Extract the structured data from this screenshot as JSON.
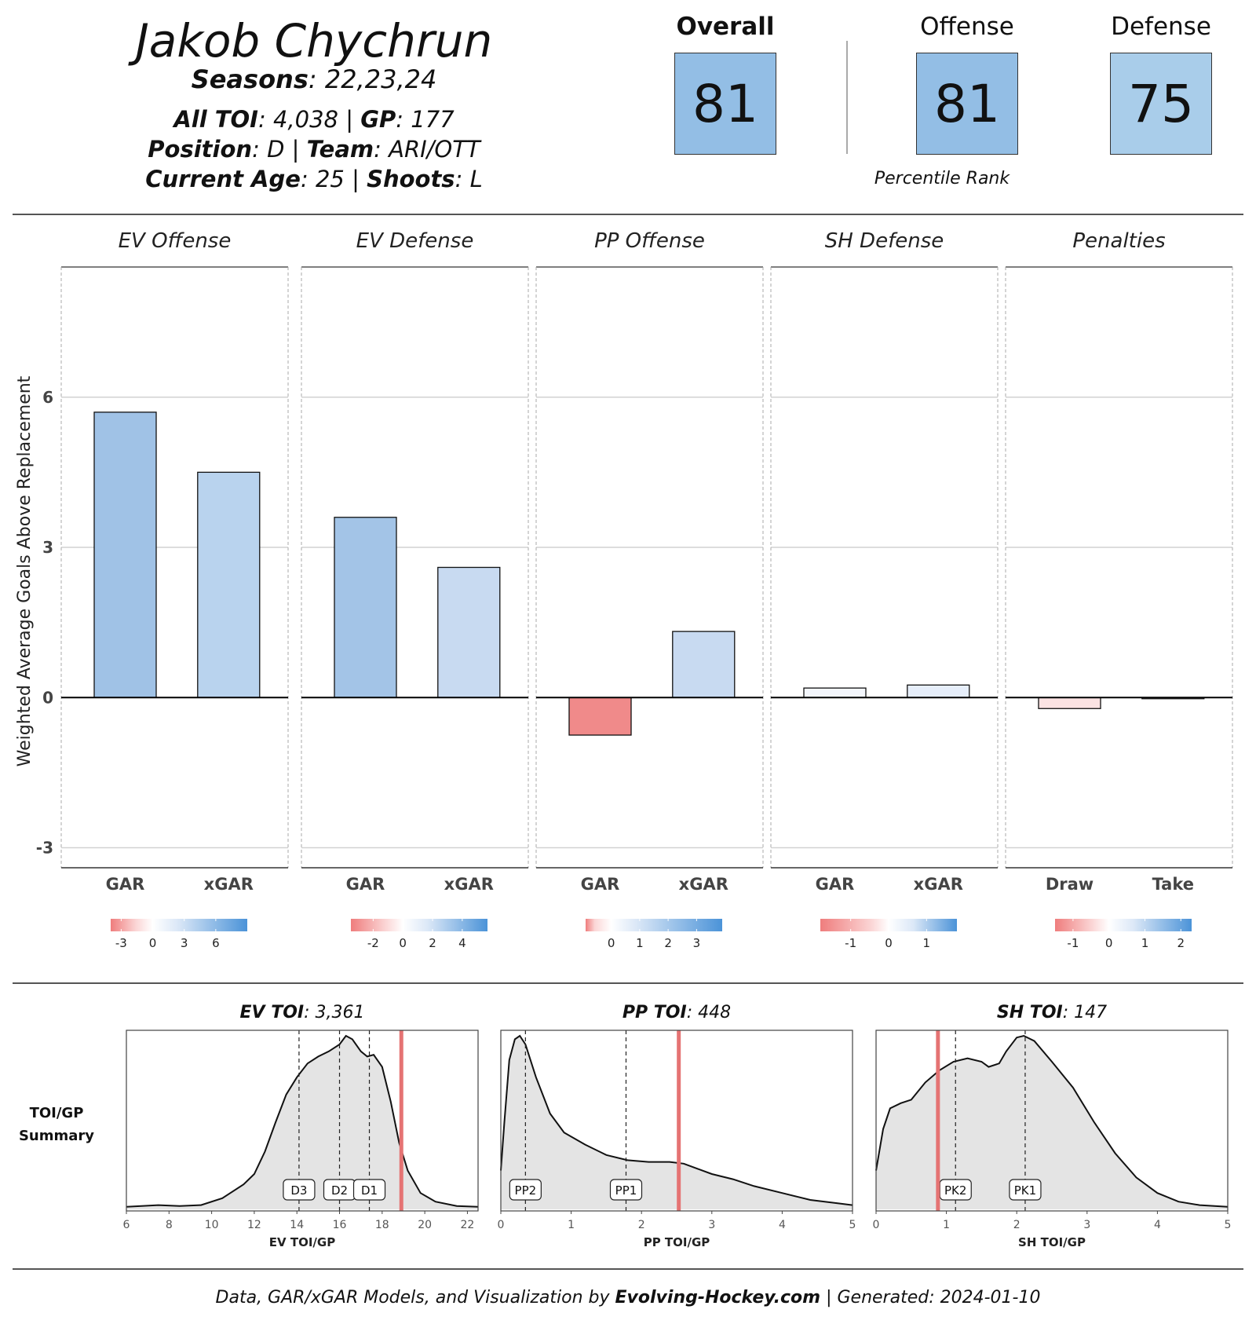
{
  "header": {
    "player_name": "Jakob Chychrun",
    "seasons_label": "Seasons",
    "seasons_value": "22,23,24",
    "toi_label": "All TOI",
    "toi_value": "4,038",
    "gp_label": "GP",
    "gp_value": "177",
    "position_label": "Position",
    "position_value": "D",
    "team_label": "Team",
    "team_value": "ARI/OTT",
    "age_label": "Current Age",
    "age_value": "25",
    "shoots_label": "Shoots",
    "shoots_value": "L",
    "separator": "|"
  },
  "ratings": {
    "overall": {
      "label": "Overall",
      "value": "81",
      "color": "#93bee5"
    },
    "offense": {
      "label": "Offense",
      "value": "81",
      "color": "#93bee5"
    },
    "defense": {
      "label": "Defense",
      "value": "75",
      "color": "#a9cdea"
    },
    "caption": "Percentile Rank"
  },
  "footer": {
    "prefix": "Data, GAR/xGAR Models, and Visualization by",
    "site": "Evolving-Hockey.com",
    "generated": "| Generated: 2024-01-10"
  },
  "toi_summary_label": [
    "TOI/GP",
    "Summary"
  ],
  "chart_data": [
    {
      "type": "bar",
      "ylabel": "Weighted Average Goals Above Replacement",
      "ylim": [
        -3.4,
        8.6
      ],
      "yticks": [
        -3,
        0,
        3,
        6
      ],
      "grid": true,
      "panels": [
        {
          "title": "EV Offense",
          "categories": [
            "GAR",
            "xGAR"
          ],
          "values": [
            5.7,
            4.5
          ],
          "colors": [
            "#a0c2e6",
            "#b9d3ee"
          ],
          "legend_ticks": [
            -3,
            0,
            3,
            6
          ],
          "legend_range": [
            -4,
            9
          ]
        },
        {
          "title": "EV Defense",
          "categories": [
            "GAR",
            "xGAR"
          ],
          "values": [
            3.6,
            2.6
          ],
          "colors": [
            "#a3c4e7",
            "#c8daf1"
          ],
          "legend_ticks": [
            -2,
            0,
            2,
            4
          ],
          "legend_range": [
            -3.5,
            5.7
          ]
        },
        {
          "title": "PP Offense",
          "categories": [
            "GAR",
            "xGAR"
          ],
          "values": [
            -0.75,
            1.32
          ],
          "colors": [
            "#f08a8a",
            "#c8daf1"
          ],
          "legend_ticks": [
            0,
            1,
            2,
            3
          ],
          "legend_range": [
            -0.9,
            3.9
          ]
        },
        {
          "title": "SH Defense",
          "categories": [
            "GAR",
            "xGAR"
          ],
          "values": [
            0.19,
            0.25
          ],
          "colors": [
            "#f3f6fc",
            "#e6eefa"
          ],
          "legend_ticks": [
            -1,
            0,
            1
          ],
          "legend_range": [
            -1.8,
            1.8
          ]
        },
        {
          "title": "Penalties",
          "categories": [
            "Draw",
            "Take"
          ],
          "values": [
            -0.22,
            -0.02
          ],
          "colors": [
            "#fbe3e3",
            "#ffffff"
          ],
          "legend_ticks": [
            -1,
            0,
            1,
            2
          ],
          "legend_range": [
            -1.5,
            2.3
          ]
        }
      ]
    },
    {
      "type": "area",
      "title_label": "EV TOI",
      "title_value": "3,361",
      "xlabel": "EV TOI/GP",
      "xlim": [
        6,
        22.5
      ],
      "xticks": [
        6,
        8,
        10,
        12,
        14,
        16,
        18,
        20,
        22
      ],
      "density": [
        [
          6,
          0.01
        ],
        [
          7.5,
          0.02
        ],
        [
          8.5,
          0.015
        ],
        [
          9.5,
          0.02
        ],
        [
          10.5,
          0.06
        ],
        [
          11.5,
          0.14
        ],
        [
          12,
          0.2
        ],
        [
          12.5,
          0.33
        ],
        [
          13,
          0.5
        ],
        [
          13.5,
          0.66
        ],
        [
          14,
          0.76
        ],
        [
          14.5,
          0.84
        ],
        [
          15,
          0.88
        ],
        [
          15.5,
          0.91
        ],
        [
          16,
          0.95
        ],
        [
          16.3,
          1.0
        ],
        [
          16.6,
          0.98
        ],
        [
          17,
          0.91
        ],
        [
          17.3,
          0.88
        ],
        [
          17.6,
          0.89
        ],
        [
          18,
          0.82
        ],
        [
          18.4,
          0.62
        ],
        [
          18.8,
          0.38
        ],
        [
          19.2,
          0.22
        ],
        [
          19.8,
          0.09
        ],
        [
          20.5,
          0.04
        ],
        [
          21.5,
          0.015
        ],
        [
          22.5,
          0.01
        ]
      ],
      "reference_lines": [
        {
          "label": "D3",
          "x": 14.1
        },
        {
          "label": "D2",
          "x": 16.0
        },
        {
          "label": "D1",
          "x": 17.4
        }
      ],
      "player_value": 18.9
    },
    {
      "type": "area",
      "title_label": "PP TOI",
      "title_value": "448",
      "xlabel": "PP TOI/GP",
      "xlim": [
        0,
        5
      ],
      "xticks": [
        0,
        1,
        2,
        3,
        4,
        5
      ],
      "density": [
        [
          0,
          0.22
        ],
        [
          0.05,
          0.5
        ],
        [
          0.12,
          0.86
        ],
        [
          0.2,
          0.98
        ],
        [
          0.27,
          1.0
        ],
        [
          0.35,
          0.95
        ],
        [
          0.5,
          0.76
        ],
        [
          0.7,
          0.55
        ],
        [
          0.9,
          0.44
        ],
        [
          1.2,
          0.37
        ],
        [
          1.5,
          0.31
        ],
        [
          1.8,
          0.28
        ],
        [
          2.1,
          0.27
        ],
        [
          2.4,
          0.27
        ],
        [
          2.6,
          0.26
        ],
        [
          2.8,
          0.23
        ],
        [
          3.0,
          0.2
        ],
        [
          3.3,
          0.17
        ],
        [
          3.6,
          0.13
        ],
        [
          4.0,
          0.09
        ],
        [
          4.4,
          0.05
        ],
        [
          4.8,
          0.03
        ],
        [
          5.0,
          0.02
        ]
      ],
      "reference_lines": [
        {
          "label": "PP2",
          "x": 0.35
        },
        {
          "label": "PP1",
          "x": 1.78
        }
      ],
      "player_value": 2.53
    },
    {
      "type": "area",
      "title_label": "SH TOI",
      "title_value": "147",
      "xlabel": "SH TOI/GP",
      "xlim": [
        0,
        5
      ],
      "xticks": [
        0,
        1,
        2,
        3,
        4,
        5
      ],
      "density": [
        [
          0,
          0.22
        ],
        [
          0.1,
          0.46
        ],
        [
          0.2,
          0.58
        ],
        [
          0.35,
          0.61
        ],
        [
          0.5,
          0.63
        ],
        [
          0.7,
          0.73
        ],
        [
          0.9,
          0.8
        ],
        [
          1.1,
          0.85
        ],
        [
          1.3,
          0.87
        ],
        [
          1.5,
          0.85
        ],
        [
          1.6,
          0.82
        ],
        [
          1.75,
          0.84
        ],
        [
          1.85,
          0.91
        ],
        [
          2.0,
          0.99
        ],
        [
          2.1,
          1.0
        ],
        [
          2.25,
          0.97
        ],
        [
          2.5,
          0.85
        ],
        [
          2.8,
          0.7
        ],
        [
          3.1,
          0.5
        ],
        [
          3.4,
          0.32
        ],
        [
          3.7,
          0.18
        ],
        [
          4.0,
          0.09
        ],
        [
          4.3,
          0.04
        ],
        [
          4.6,
          0.02
        ],
        [
          5.0,
          0.01
        ]
      ],
      "reference_lines": [
        {
          "label": "PK2",
          "x": 1.13
        },
        {
          "label": "PK1",
          "x": 2.12
        }
      ],
      "player_value": 0.88
    }
  ]
}
